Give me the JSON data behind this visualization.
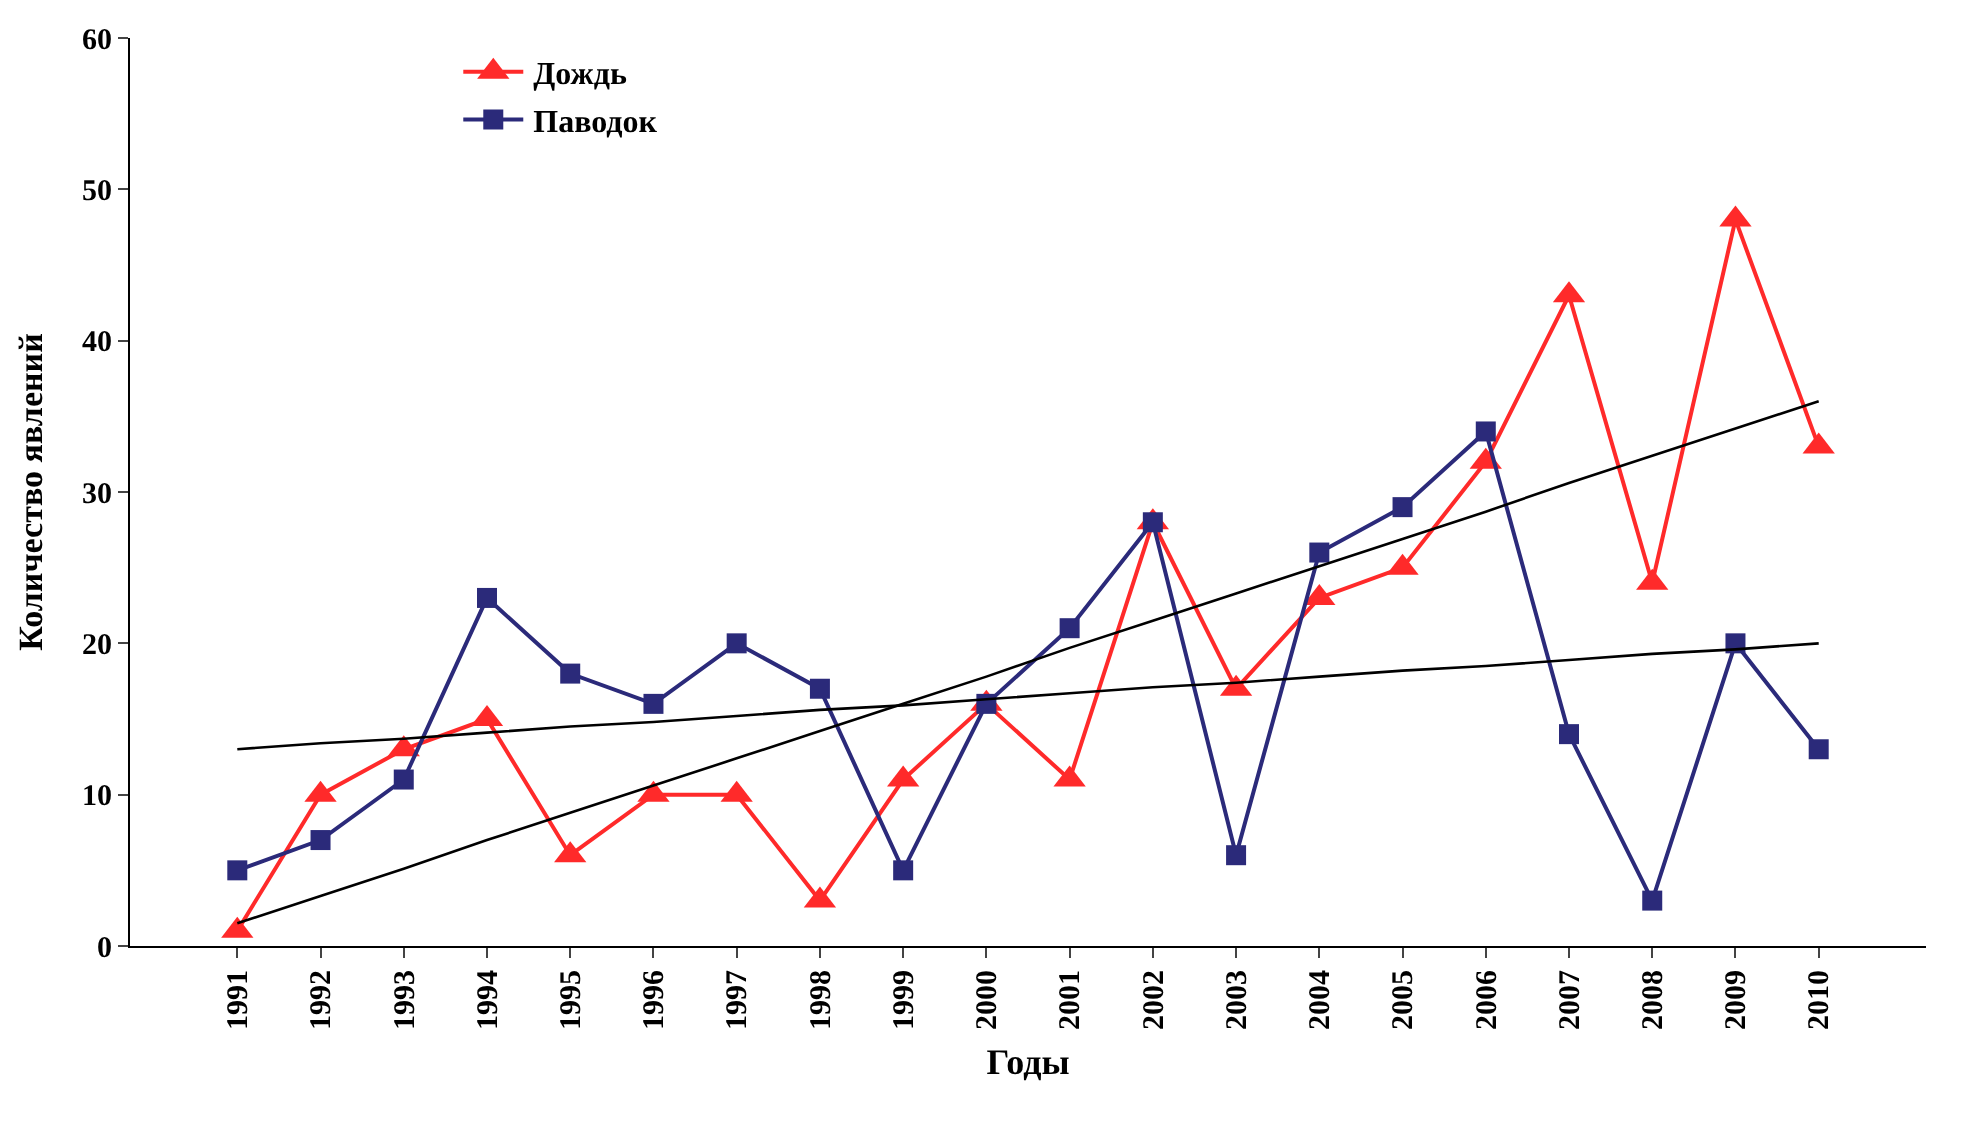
{
  "chart_data": {
    "type": "line",
    "xlabel": "Годы",
    "ylabel": "Количество явлений",
    "categories": [
      "1991",
      "1992",
      "1993",
      "1994",
      "1995",
      "1996",
      "1997",
      "1998",
      "1999",
      "2000",
      "2001",
      "2002",
      "2003",
      "2004",
      "2005",
      "2006",
      "2007",
      "2008",
      "2009",
      "2010"
    ],
    "ylim": [
      0,
      60
    ],
    "yticks": [
      0,
      10,
      20,
      30,
      40,
      50,
      60
    ],
    "grid": false,
    "legend": "top left",
    "series": [
      {
        "name": "Дождь",
        "color": "#ff2a2a",
        "marker": "triangle",
        "values": [
          1,
          10,
          13,
          15,
          6,
          10,
          10,
          3,
          11,
          16,
          11,
          28,
          17,
          23,
          25,
          32,
          43,
          24,
          48,
          33
        ]
      },
      {
        "name": "Паводок",
        "color": "#2b2a7a",
        "marker": "square",
        "values": [
          5,
          7,
          11,
          23,
          18,
          16,
          20,
          17,
          5,
          16,
          21,
          28,
          6,
          26,
          29,
          34,
          14,
          3,
          20,
          13
        ]
      },
      {
        "type": "line",
        "color": "#000000",
        "marker": "none",
        "values": [
          1.5,
          3.3,
          5.1,
          7.0,
          8.8,
          10.6,
          12.4,
          14.2,
          16.0,
          17.8,
          19.7,
          21.5,
          23.3,
          25.1,
          26.9,
          28.7,
          30.6,
          32.4,
          34.2,
          36.0
        ]
      },
      {
        "type": "line",
        "color": "#000000",
        "marker": "none",
        "values": [
          13.0,
          13.4,
          13.7,
          14.1,
          14.5,
          14.8,
          15.2,
          15.6,
          15.9,
          16.3,
          16.7,
          17.1,
          17.4,
          17.8,
          18.2,
          18.5,
          18.9,
          19.3,
          19.6,
          20.0
        ]
      }
    ]
  }
}
